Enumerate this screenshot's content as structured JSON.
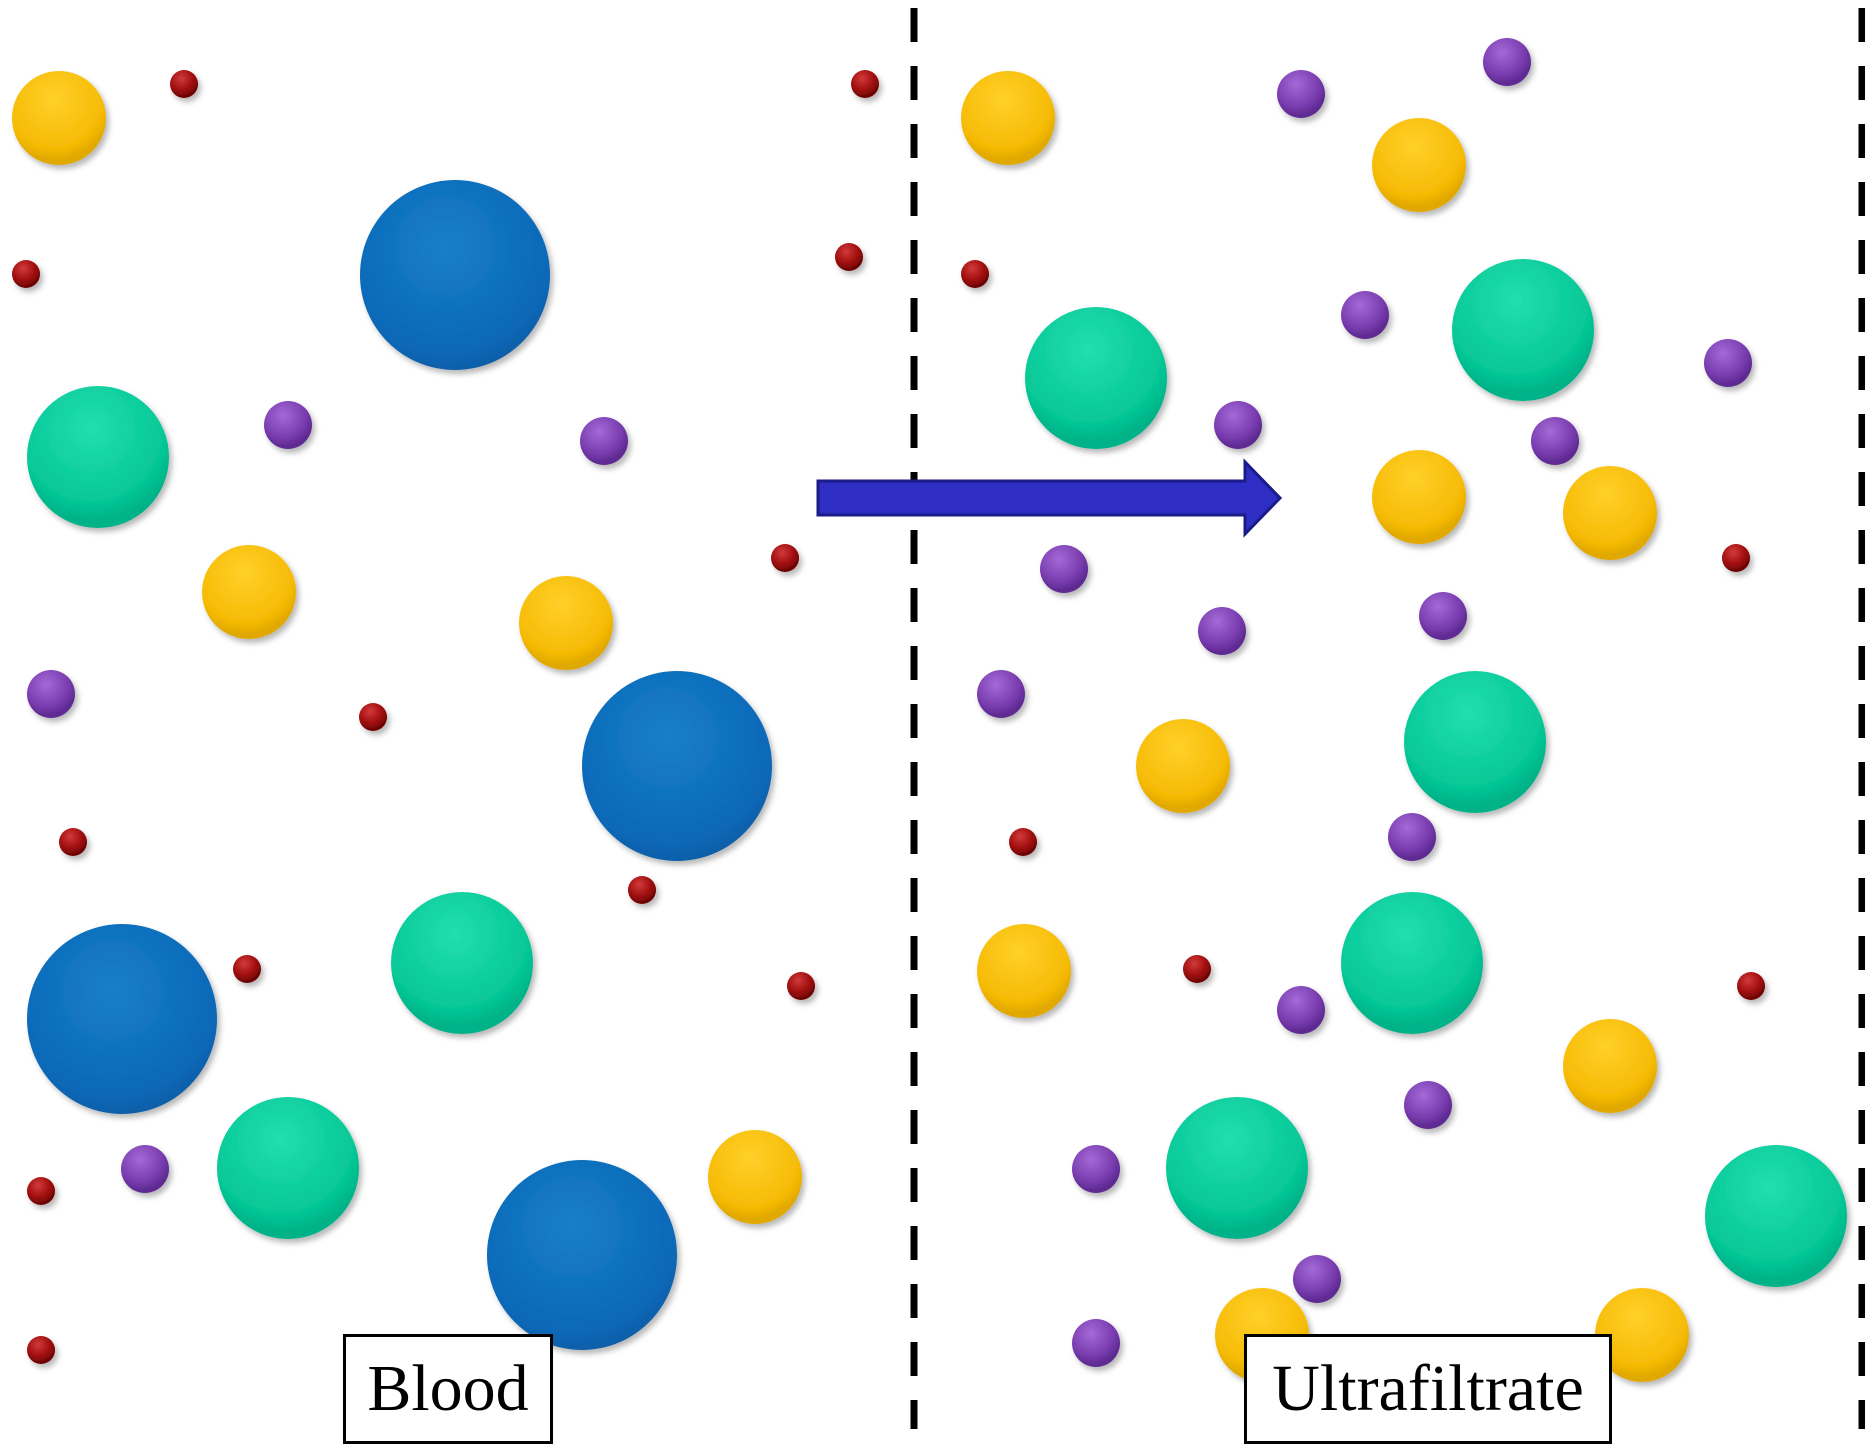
{
  "labels": {
    "blood": "Blood",
    "ultrafiltrate": "Ultrafiltrate"
  },
  "colors": {
    "blue_protein": "#0a6fbe",
    "green_particle": "#0cc99a",
    "yellow_particle": "#f5bc0a",
    "purple_particle": "#7a3fb0",
    "red_particle": "#a00c0c",
    "arrow": "#2e2ec4",
    "membrane": "#000000"
  },
  "particle_types": [
    "blue-protein",
    "green-particle",
    "yellow-particle",
    "purple-particle",
    "red-particle"
  ],
  "flow_direction": "blood to ultrafiltrate"
}
